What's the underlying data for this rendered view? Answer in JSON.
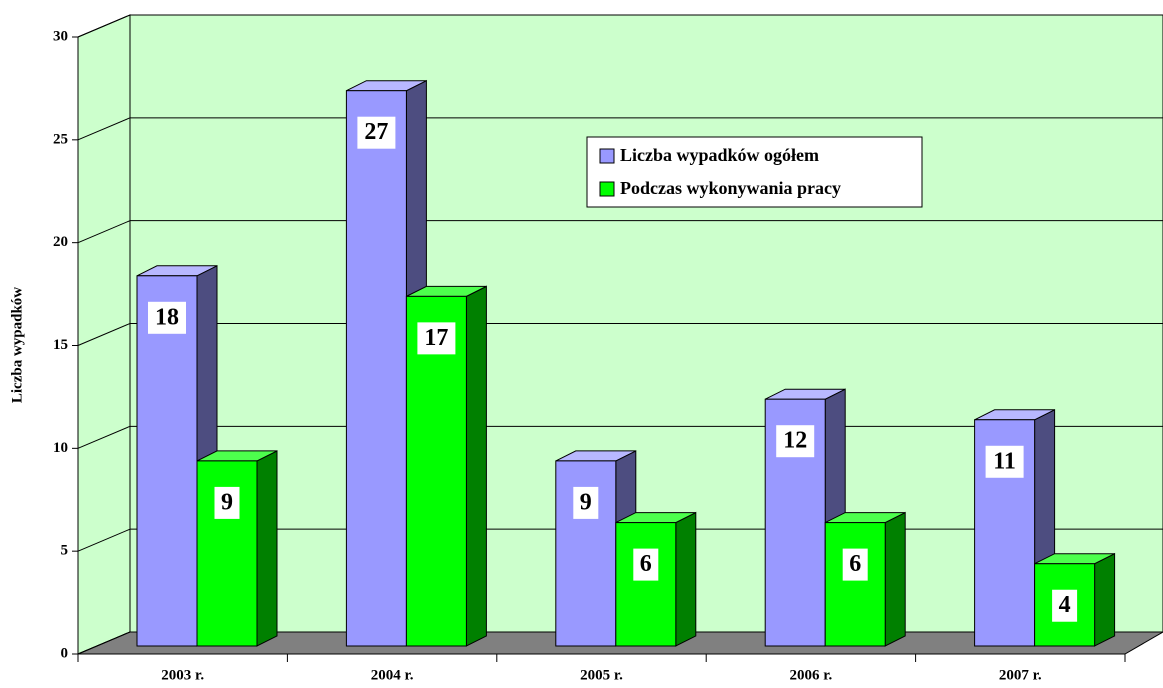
{
  "chart_data": {
    "type": "bar3d",
    "y_label": "Liczba wypadków",
    "categories": [
      "2003 r.",
      "2004 r.",
      "2005 r.",
      "2006 r.",
      "2007 r."
    ],
    "series": [
      {
        "name": "Liczba wypadków ogółem",
        "color": "#9999ff",
        "values": [
          18,
          27,
          9,
          12,
          11
        ]
      },
      {
        "name": "Podczas wykonywania pracy",
        "color": "#00ff00",
        "values": [
          9,
          17,
          6,
          6,
          4
        ]
      }
    ],
    "ylim": [
      0,
      30
    ],
    "yticks": [
      0,
      5,
      10,
      15,
      20,
      25,
      30
    ],
    "grid": true,
    "legend": "upper right"
  }
}
